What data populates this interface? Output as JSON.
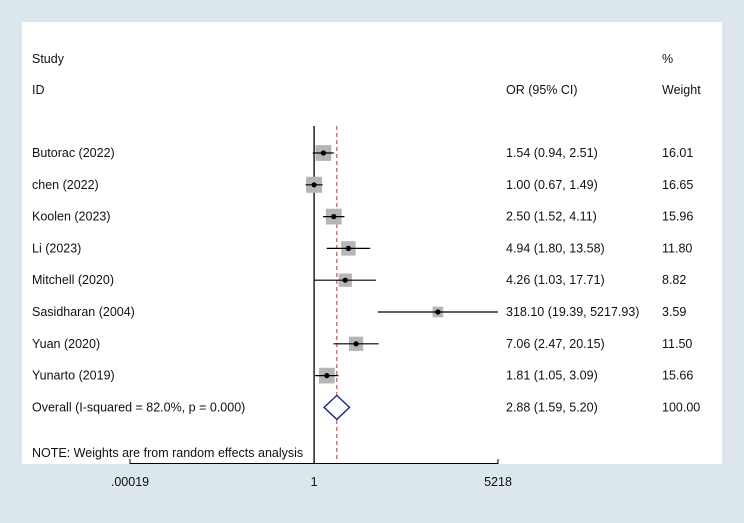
{
  "chart_data": {
    "type": "forest",
    "headers": {
      "study_top": "Study",
      "study_bottom": "ID",
      "effect": "OR (95% CI)",
      "weight_top": "%",
      "weight_bottom": "Weight"
    },
    "studies": [
      {
        "name": "Butorac (2022)",
        "or": 1.54,
        "lower": 0.94,
        "upper": 2.51,
        "ci_text": "1.54 (0.94, 2.51)",
        "weight": "16.01"
      },
      {
        "name": "chen (2022)",
        "or": 1.0,
        "lower": 0.67,
        "upper": 1.49,
        "ci_text": "1.00 (0.67, 1.49)",
        "weight": "16.65"
      },
      {
        "name": "Koolen (2023)",
        "or": 2.5,
        "lower": 1.52,
        "upper": 4.11,
        "ci_text": "2.50 (1.52, 4.11)",
        "weight": "15.96"
      },
      {
        "name": "Li (2023)",
        "or": 4.94,
        "lower": 1.8,
        "upper": 13.58,
        "ci_text": "4.94 (1.80, 13.58)",
        "weight": "11.80"
      },
      {
        "name": "Mitchell (2020)",
        "or": 4.26,
        "lower": 1.03,
        "upper": 17.71,
        "ci_text": "4.26 (1.03, 17.71)",
        "weight": "8.82"
      },
      {
        "name": "Sasidharan (2004)",
        "or": 318.1,
        "lower": 19.39,
        "upper": 5217.93,
        "ci_text": "318.10 (19.39, 5217.93)",
        "weight": "3.59"
      },
      {
        "name": "Yuan (2020)",
        "or": 7.06,
        "lower": 2.47,
        "upper": 20.15,
        "ci_text": "7.06 (2.47, 20.15)",
        "weight": "11.50"
      },
      {
        "name": "Yunarto (2019)",
        "or": 1.81,
        "lower": 1.05,
        "upper": 3.09,
        "ci_text": "1.81 (1.05, 3.09)",
        "weight": "15.66"
      }
    ],
    "overall": {
      "label": "Overall  (I-squared = 82.0%, p = 0.000)",
      "or": 2.88,
      "lower": 1.59,
      "upper": 5.2,
      "ci_text": "2.88 (1.59, 5.20)",
      "weight": "100.00"
    },
    "note": "NOTE: Weights are from random effects analysis",
    "x_axis": {
      "scale": "log",
      "range": [
        0.00019,
        5218
      ],
      "ticks": [
        0.00019,
        1,
        5218
      ],
      "tick_labels": [
        ".00019",
        "1",
        "5218"
      ]
    },
    "colors": {
      "background": "#dbe6ed",
      "panel": "#ffffff",
      "ci_line": "#000000",
      "weight_box": "#b5b5b5",
      "diamond": "#1a237e",
      "overall_line": "#b03a3a"
    }
  }
}
